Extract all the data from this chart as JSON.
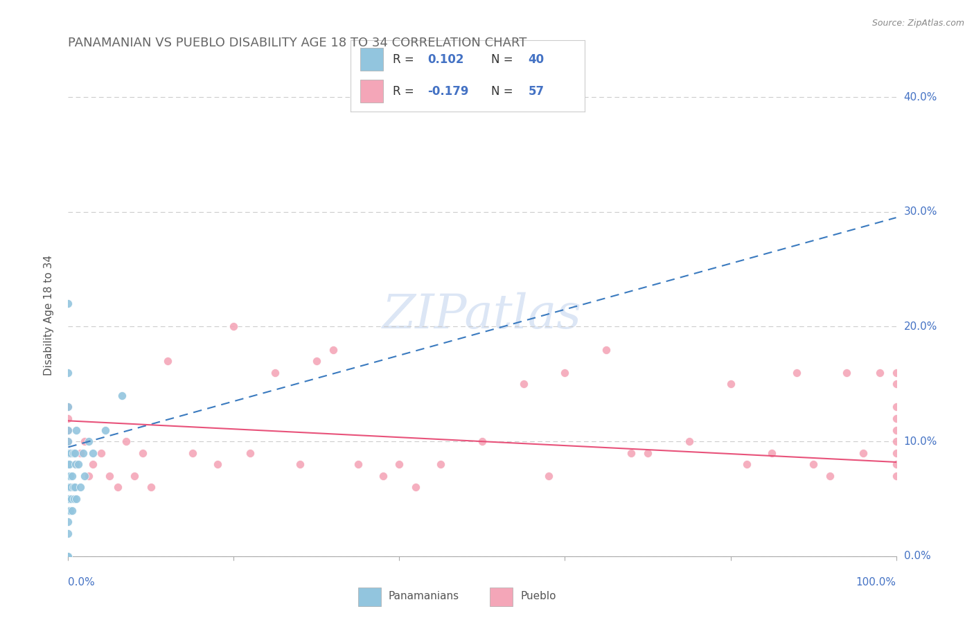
{
  "title": "PANAMANIAN VS PUEBLO DISABILITY AGE 18 TO 34 CORRELATION CHART",
  "source_text": "Source: ZipAtlas.com",
  "ylabel": "Disability Age 18 to 34",
  "xlim": [
    0.0,
    1.0
  ],
  "ylim": [
    0.0,
    0.42
  ],
  "yticks": [
    0.0,
    0.1,
    0.2,
    0.3,
    0.4
  ],
  "ytick_labels_right": [
    "0.0%",
    "10.0%",
    "20.0%",
    "30.0%",
    "40.0%"
  ],
  "r1": 0.102,
  "n1": 40,
  "r2": -0.179,
  "n2": 57,
  "blue_color": "#92c5de",
  "pink_color": "#f4a6b8",
  "blue_line_color": "#3a7abf",
  "pink_line_color": "#e8527a",
  "axis_label_color": "#4472c4",
  "title_color": "#666666",
  "watermark_color": "#dce6f5",
  "grid_color": "#cccccc",
  "source_color": "#888888",
  "pan_x": [
    0.0,
    0.0,
    0.0,
    0.0,
    0.0,
    0.0,
    0.0,
    0.0,
    0.0,
    0.0,
    0.0,
    0.0,
    0.0,
    0.0,
    0.0,
    0.001,
    0.001,
    0.002,
    0.002,
    0.003,
    0.003,
    0.004,
    0.005,
    0.005,
    0.006,
    0.006,
    0.007,
    0.008,
    0.008,
    0.009,
    0.01,
    0.01,
    0.012,
    0.015,
    0.018,
    0.02,
    0.025,
    0.03,
    0.045,
    0.065
  ],
  "pan_y": [
    0.0,
    0.0,
    0.02,
    0.03,
    0.04,
    0.05,
    0.06,
    0.07,
    0.08,
    0.09,
    0.1,
    0.11,
    0.13,
    0.16,
    0.22,
    0.05,
    0.08,
    0.04,
    0.07,
    0.06,
    0.09,
    0.05,
    0.04,
    0.07,
    0.06,
    0.09,
    0.05,
    0.06,
    0.09,
    0.08,
    0.05,
    0.11,
    0.08,
    0.06,
    0.09,
    0.07,
    0.1,
    0.09,
    0.11,
    0.14
  ],
  "pub_x": [
    0.0,
    0.0,
    0.0,
    0.0,
    0.005,
    0.01,
    0.015,
    0.02,
    0.025,
    0.03,
    0.04,
    0.05,
    0.06,
    0.07,
    0.08,
    0.09,
    0.1,
    0.12,
    0.15,
    0.18,
    0.2,
    0.22,
    0.25,
    0.28,
    0.3,
    0.32,
    0.35,
    0.38,
    0.4,
    0.42,
    0.45,
    0.5,
    0.55,
    0.58,
    0.6,
    0.65,
    0.68,
    0.7,
    0.75,
    0.8,
    0.82,
    0.85,
    0.88,
    0.9,
    0.92,
    0.94,
    0.96,
    0.98,
    1.0,
    1.0,
    1.0,
    1.0,
    1.0,
    1.0,
    1.0,
    1.0,
    1.0
  ],
  "pub_y": [
    0.1,
    0.11,
    0.12,
    0.13,
    0.09,
    0.08,
    0.09,
    0.1,
    0.07,
    0.08,
    0.09,
    0.07,
    0.06,
    0.1,
    0.07,
    0.09,
    0.06,
    0.17,
    0.09,
    0.08,
    0.2,
    0.09,
    0.16,
    0.08,
    0.17,
    0.18,
    0.08,
    0.07,
    0.08,
    0.06,
    0.08,
    0.1,
    0.15,
    0.07,
    0.16,
    0.18,
    0.09,
    0.09,
    0.1,
    0.15,
    0.08,
    0.09,
    0.16,
    0.08,
    0.07,
    0.16,
    0.09,
    0.16,
    0.1,
    0.11,
    0.12,
    0.13,
    0.07,
    0.08,
    0.09,
    0.15,
    0.16
  ],
  "blue_trend_x0": 0.0,
  "blue_trend_y0": 0.095,
  "blue_trend_x1": 1.0,
  "blue_trend_y1": 0.295,
  "pink_trend_x0": 0.0,
  "pink_trend_y0": 0.118,
  "pink_trend_x1": 1.0,
  "pink_trend_y1": 0.082
}
